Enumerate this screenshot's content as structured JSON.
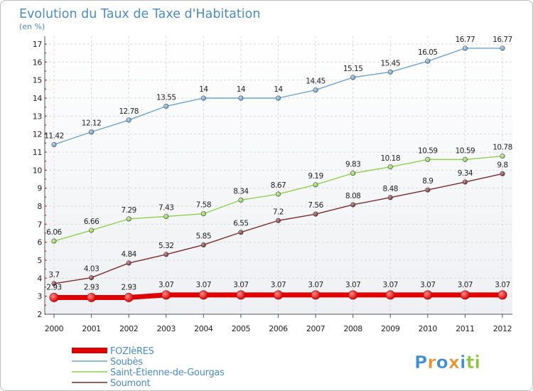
{
  "chart_data": {
    "type": "line",
    "title": "Evolution du Taux de Taxe d'Habitation",
    "subtitle": "(en %)",
    "x": [
      "2000",
      "2001",
      "2002",
      "2003",
      "2004",
      "2005",
      "2006",
      "2007",
      "2008",
      "2009",
      "2010",
      "2011",
      "2012"
    ],
    "yticks": [
      "2",
      "3",
      "4",
      "5",
      "6",
      "7",
      "8",
      "9",
      "10",
      "11",
      "12",
      "13",
      "14",
      "15",
      "16",
      "17"
    ],
    "ylim": [
      2,
      17
    ],
    "grid": true,
    "legend_position": "bottom-left",
    "series": [
      {
        "name": "FOZIèRES",
        "color": "#e00000",
        "values": [
          2.93,
          2.93,
          2.93,
          3.07,
          3.07,
          3.07,
          3.07,
          3.07,
          3.07,
          3.07,
          3.07,
          3.07,
          3.07
        ],
        "labels": [
          "2.93",
          "2.93",
          "2.93",
          "3.07",
          "3.07",
          "3.07",
          "3.07",
          "3.07",
          "3.07",
          "3.07",
          "3.07",
          "3.07",
          "3.07"
        ]
      },
      {
        "name": "Soubès",
        "color": "#6aa3d5",
        "values": [
          11.42,
          12.12,
          12.78,
          13.55,
          14,
          14,
          14,
          14.45,
          15.15,
          15.45,
          16.05,
          16.77,
          16.77
        ],
        "labels": [
          "11.42",
          "12.12",
          "12.78",
          "13.55",
          "14",
          "14",
          "14",
          "14.45",
          "15.15",
          "15.45",
          "16.05",
          "16.77",
          "16.77"
        ]
      },
      {
        "name": "Saint-Étienne-de-Gourgas",
        "color": "#8ed14b",
        "values": [
          6.06,
          6.66,
          7.29,
          7.43,
          7.58,
          8.34,
          8.67,
          9.19,
          9.83,
          10.18,
          10.59,
          10.59,
          10.78
        ],
        "labels": [
          "6.06",
          "6.66",
          "7.29",
          "7.43",
          "7.58",
          "8.34",
          "8.67",
          "9.19",
          "9.83",
          "10.18",
          "10.59",
          "10.59",
          "10.78"
        ]
      },
      {
        "name": "Soumont",
        "color": "#7b2a2a",
        "values": [
          3.7,
          4.03,
          4.84,
          5.32,
          5.85,
          6.55,
          7.2,
          7.56,
          8.08,
          8.48,
          8.9,
          9.34,
          9.8
        ],
        "labels": [
          "3.7",
          "4.03",
          "4.84",
          "5.32",
          "5.85",
          "6.55",
          "7.2",
          "7.56",
          "8.08",
          "8.48",
          "8.9",
          "9.34",
          "9.8"
        ]
      }
    ]
  },
  "logo": {
    "text": "Proxiti",
    "letters": [
      {
        "ch": "P",
        "color": "#3b8fd6"
      },
      {
        "ch": "r",
        "color": "#e8922a"
      },
      {
        "ch": "o",
        "color": "#3b8fd6"
      },
      {
        "ch": "x",
        "color": "#e8922a"
      },
      {
        "ch": "i",
        "color": "#3b8fd6"
      },
      {
        "ch": "t",
        "color": "#8cc63f"
      },
      {
        "ch": "i",
        "color": "#8cc63f"
      }
    ]
  }
}
